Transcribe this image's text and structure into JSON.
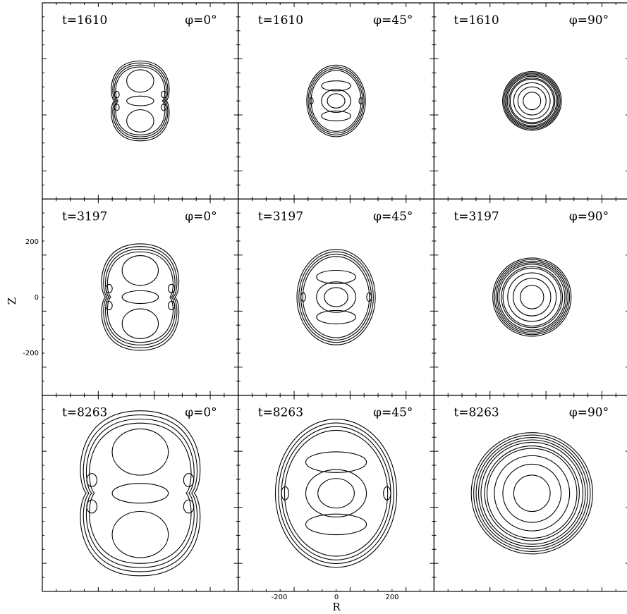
{
  "figure": {
    "x_axis_label": "R",
    "y_axis_label": "Z",
    "x_tick_labels": [
      "-200",
      "0",
      "200"
    ],
    "y_tick_labels": [
      "200",
      "0",
      "-200"
    ],
    "rows": [
      {
        "time_label": "t=1610",
        "scale": 0.3,
        "panels": [
          {
            "phi_label": "φ=0°",
            "style": "pinched"
          },
          {
            "phi_label": "φ=45°",
            "style": "oval"
          },
          {
            "phi_label": "φ=90°",
            "style": "rings"
          }
        ]
      },
      {
        "time_label": "t=3197",
        "scale": 0.4,
        "panels": [
          {
            "phi_label": "φ=0°",
            "style": "pinched"
          },
          {
            "phi_label": "φ=45°",
            "style": "oval"
          },
          {
            "phi_label": "φ=90°",
            "style": "rings"
          }
        ]
      },
      {
        "time_label": "t=8263",
        "scale": 0.62,
        "panels": [
          {
            "phi_label": "φ=0°",
            "style": "pinched"
          },
          {
            "phi_label": "φ=45°",
            "style": "oval"
          },
          {
            "phi_label": "φ=90°",
            "style": "rings"
          }
        ]
      }
    ]
  }
}
